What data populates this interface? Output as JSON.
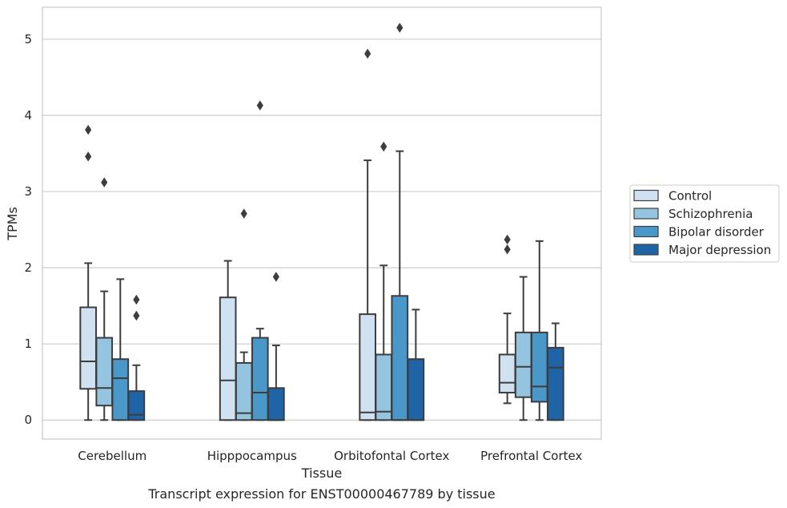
{
  "caption": "Transcript expression for ENST00000467789 by tissue",
  "chart_data": {
    "type": "box",
    "xlabel": "Tissue",
    "ylabel": "TPMs",
    "ylim": [
      -0.25,
      5.42
    ],
    "yticks": [
      0,
      1,
      2,
      3,
      4,
      5
    ],
    "grid": "horizontal",
    "legend_position": "right",
    "categories": [
      "Cerebellum",
      "Hipppocampus",
      "Orbitofontal Cortex",
      "Prefrontal Cortex"
    ],
    "series": [
      {
        "name": "Control",
        "color": "#d0e1f2",
        "boxes": [
          {
            "whisker_low": 0,
            "q1": 0.41,
            "median": 0.77,
            "q3": 1.48,
            "whisker_high": 2.06,
            "outliers": [
              3.81,
              3.46
            ]
          },
          {
            "whisker_low": 0,
            "q1": 0,
            "median": 0.52,
            "q3": 1.61,
            "whisker_high": 2.09,
            "outliers": []
          },
          {
            "whisker_low": 0,
            "q1": 0,
            "median": 0.1,
            "q3": 1.39,
            "whisker_high": 3.41,
            "outliers": [
              4.81
            ]
          },
          {
            "whisker_low": 0.22,
            "q1": 0.36,
            "median": 0.49,
            "q3": 0.86,
            "whisker_high": 1.4,
            "outliers": [
              2.37,
              2.24
            ]
          }
        ]
      },
      {
        "name": "Schizophrenia",
        "color": "#94c4df",
        "boxes": [
          {
            "whisker_low": 0,
            "q1": 0.19,
            "median": 0.42,
            "q3": 1.08,
            "whisker_high": 1.69,
            "outliers": [
              3.12
            ]
          },
          {
            "whisker_low": 0,
            "q1": 0,
            "median": 0.09,
            "q3": 0.75,
            "whisker_high": 0.89,
            "outliers": [
              2.71
            ]
          },
          {
            "whisker_low": 0,
            "q1": 0,
            "median": 0.11,
            "q3": 0.86,
            "whisker_high": 2.03,
            "outliers": [
              3.59
            ]
          },
          {
            "whisker_low": 0,
            "q1": 0.3,
            "median": 0.7,
            "q3": 1.15,
            "whisker_high": 1.88,
            "outliers": []
          }
        ]
      },
      {
        "name": "Bipolar disorder",
        "color": "#4a98c9",
        "boxes": [
          {
            "whisker_low": 0,
            "q1": 0,
            "median": 0.55,
            "q3": 0.8,
            "whisker_high": 1.85,
            "outliers": []
          },
          {
            "whisker_low": 0,
            "q1": 0,
            "median": 0.36,
            "q3": 1.08,
            "whisker_high": 1.2,
            "outliers": [
              4.13
            ]
          },
          {
            "whisker_low": 0,
            "q1": 0,
            "median": 0,
            "q3": 1.63,
            "whisker_high": 3.53,
            "outliers": [
              5.15
            ]
          },
          {
            "whisker_low": 0,
            "q1": 0.24,
            "median": 0.44,
            "q3": 1.15,
            "whisker_high": 2.35,
            "outliers": []
          }
        ]
      },
      {
        "name": "Major depression",
        "color": "#2064a8",
        "boxes": [
          {
            "whisker_low": 0,
            "q1": 0,
            "median": 0.07,
            "q3": 0.38,
            "whisker_high": 0.72,
            "outliers": [
              1.58,
              1.37
            ]
          },
          {
            "whisker_low": 0,
            "q1": 0,
            "median": 0,
            "q3": 0.42,
            "whisker_high": 0.98,
            "outliers": [
              1.88
            ]
          },
          {
            "whisker_low": 0,
            "q1": 0,
            "median": 0,
            "q3": 0.8,
            "whisker_high": 1.45,
            "outliers": []
          },
          {
            "whisker_low": 0,
            "q1": 0,
            "median": 0.69,
            "q3": 0.95,
            "whisker_high": 1.27,
            "outliers": []
          }
        ]
      }
    ]
  }
}
